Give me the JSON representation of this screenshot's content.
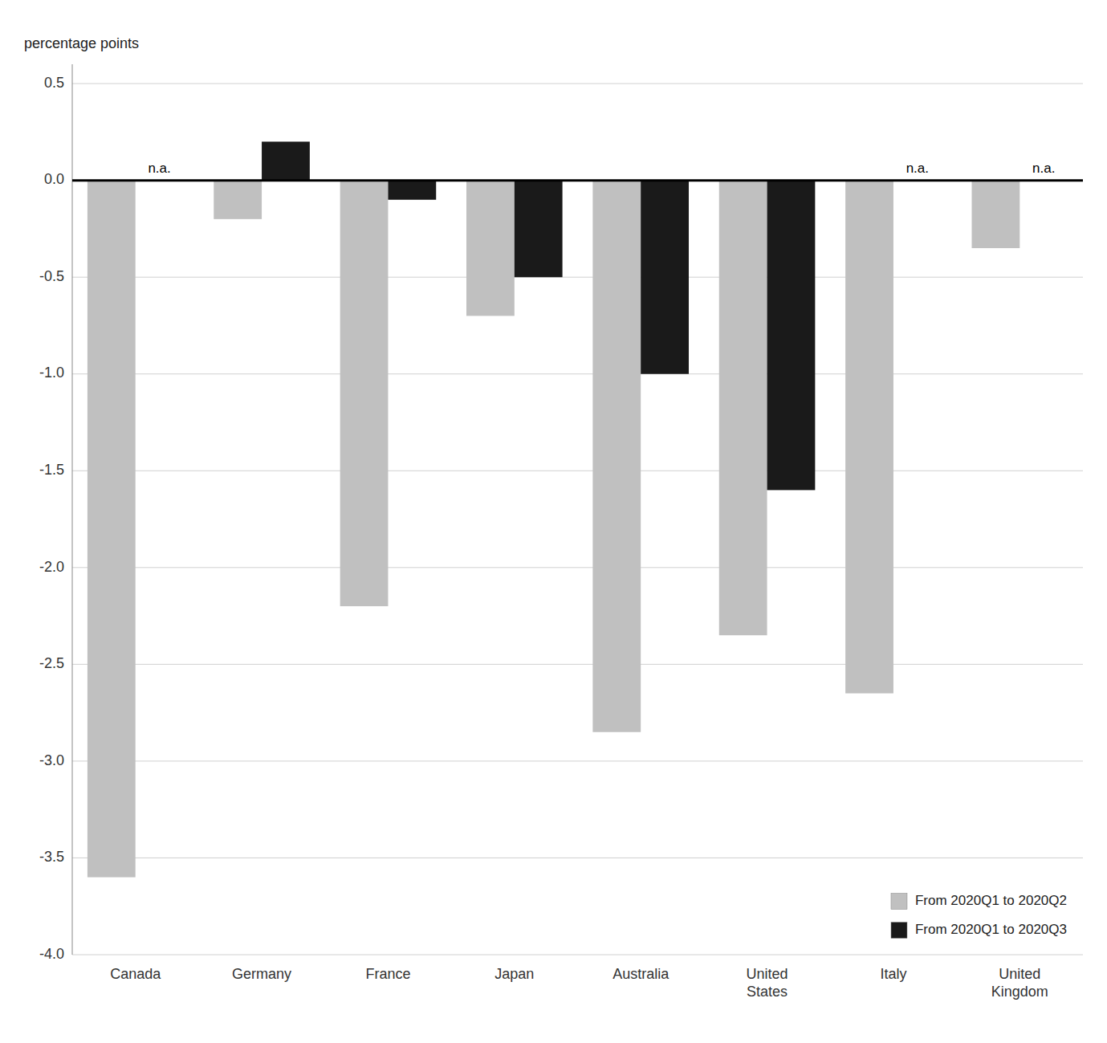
{
  "chart_data": {
    "type": "bar",
    "ylabel": "percentage points",
    "categories": [
      "Canada",
      "Germany",
      "France",
      "Japan",
      "Australia",
      "United\nStates",
      "Italy",
      "United\nKingdom"
    ],
    "series": [
      {
        "name": "From 2020Q1 to 2020Q2",
        "color": "#c0c0c0",
        "values": [
          -3.6,
          -0.2,
          -2.2,
          -0.7,
          -2.85,
          -2.35,
          -2.65,
          -0.35
        ]
      },
      {
        "name": "From 2020Q1 to 2020Q3",
        "color": "#1a1a1a",
        "values": [
          null,
          0.2,
          -0.1,
          -0.5,
          -1.0,
          -1.6,
          null,
          null
        ]
      }
    ],
    "annotations": [
      {
        "text": "n.a.",
        "category": "Canada",
        "series": "From 2020Q1 to 2020Q3"
      },
      {
        "text": "n.a.",
        "category": "Italy",
        "series": "From 2020Q1 to 2020Q3"
      },
      {
        "text": "n.a.",
        "category": "United\nKingdom",
        "series": "From 2020Q1 to 2020Q3"
      }
    ],
    "ylim": [
      -4.0,
      0.6
    ],
    "yticks": [
      0.5,
      {
        "value": 0.0,
        "label": "0.0"
      },
      -0.5,
      {
        "value": -1.0,
        "label": "-1.0"
      },
      -1.5,
      {
        "value": -2.0,
        "label": "-2.0"
      },
      -2.5,
      {
        "value": -3.0,
        "label": "-3.0"
      },
      -3.5,
      {
        "value": -4.0,
        "label": "-4.0"
      }
    ],
    "grid": true,
    "legend": "lower right"
  }
}
